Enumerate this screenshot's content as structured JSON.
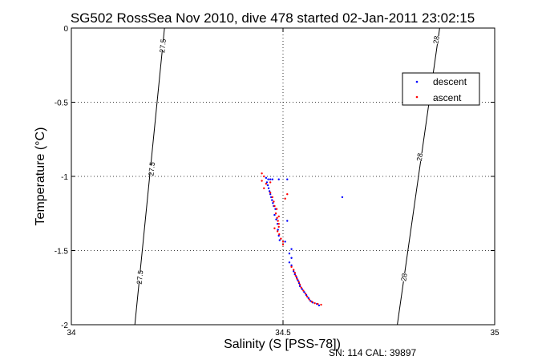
{
  "chart_data": {
    "type": "scatter",
    "title": "SG502 RossSea Nov 2010, dive 478 started 02-Jan-2011 23:02:15",
    "xlabel": "Salinity (S [PSS-78])",
    "ylabel": "Temperature (°C)",
    "xlim": [
      34,
      35
    ],
    "ylim": [
      -2,
      0
    ],
    "xticks": [
      "34",
      "34.5",
      "35"
    ],
    "yticks": [
      "0",
      "-0.5",
      "-1",
      "-1.5",
      "-2"
    ],
    "grid": true,
    "legend_position": "top-right",
    "footer": "SN: 114  CAL: 39897",
    "isopycnals": [
      {
        "label": "27.5",
        "points": [
          [
            34.22,
            0
          ],
          [
            34.15,
            -2
          ]
        ],
        "label_positions": [
          [
            34.216,
            -0.12
          ],
          [
            34.19,
            -0.95
          ],
          [
            34.162,
            -1.68
          ]
        ]
      },
      {
        "label": "28",
        "points": [
          [
            34.87,
            0
          ],
          [
            34.77,
            -2
          ]
        ],
        "label_positions": [
          [
            34.862,
            -0.08
          ],
          [
            34.823,
            -0.87
          ],
          [
            34.786,
            -1.68
          ]
        ]
      }
    ],
    "series": [
      {
        "name": "descent",
        "color": "#0000ff",
        "points": [
          [
            34.46,
            -1.01
          ],
          [
            34.465,
            -1.02
          ],
          [
            34.47,
            -1.02
          ],
          [
            34.475,
            -1.02
          ],
          [
            34.49,
            -1.02
          ],
          [
            34.51,
            -1.02
          ],
          [
            34.462,
            -1.04
          ],
          [
            34.464,
            -1.06
          ],
          [
            34.466,
            -1.08
          ],
          [
            34.468,
            -1.1
          ],
          [
            34.47,
            -1.12
          ],
          [
            34.472,
            -1.14
          ],
          [
            34.474,
            -1.16
          ],
          [
            34.476,
            -1.18
          ],
          [
            34.478,
            -1.2
          ],
          [
            34.482,
            -1.22
          ],
          [
            34.48,
            -1.26
          ],
          [
            34.484,
            -1.29
          ],
          [
            34.487,
            -1.32
          ],
          [
            34.488,
            -1.36
          ],
          [
            34.49,
            -1.4
          ],
          [
            34.492,
            -1.43
          ],
          [
            34.64,
            -1.14
          ],
          [
            34.51,
            -1.3
          ],
          [
            34.505,
            -1.44
          ],
          [
            34.52,
            -1.49
          ],
          [
            34.515,
            -1.52
          ],
          [
            34.52,
            -1.55
          ],
          [
            34.515,
            -1.58
          ],
          [
            34.52,
            -1.6
          ],
          [
            34.525,
            -1.64
          ],
          [
            34.528,
            -1.66
          ],
          [
            34.532,
            -1.68
          ],
          [
            34.535,
            -1.7
          ],
          [
            34.538,
            -1.72
          ],
          [
            34.54,
            -1.74
          ],
          [
            34.545,
            -1.76
          ],
          [
            34.55,
            -1.78
          ],
          [
            34.555,
            -1.8
          ],
          [
            34.56,
            -1.82
          ],
          [
            34.565,
            -1.84
          ],
          [
            34.57,
            -1.85
          ],
          [
            34.58,
            -1.86
          ],
          [
            34.585,
            -1.87
          ]
        ]
      },
      {
        "name": "ascent",
        "color": "#ff0000",
        "points": [
          [
            34.45,
            -0.98
          ],
          [
            34.455,
            -1.0
          ],
          [
            34.45,
            -1.03
          ],
          [
            34.46,
            -1.05
          ],
          [
            34.455,
            -1.08
          ],
          [
            34.47,
            -1.04
          ],
          [
            34.47,
            -1.11
          ],
          [
            34.475,
            -1.14
          ],
          [
            34.478,
            -1.17
          ],
          [
            34.48,
            -1.2
          ],
          [
            34.485,
            -1.22
          ],
          [
            34.483,
            -1.25
          ],
          [
            34.486,
            -1.28
          ],
          [
            34.488,
            -1.3
          ],
          [
            34.49,
            -1.32
          ],
          [
            34.49,
            -1.34
          ],
          [
            34.487,
            -1.37
          ],
          [
            34.491,
            -1.39
          ],
          [
            34.495,
            -1.42
          ],
          [
            34.5,
            -1.44
          ],
          [
            34.5,
            -1.46
          ],
          [
            34.49,
            -1.27
          ],
          [
            34.51,
            -1.12
          ],
          [
            34.505,
            -1.15
          ],
          [
            34.48,
            -1.35
          ],
          [
            34.52,
            -1.61
          ],
          [
            34.525,
            -1.63
          ],
          [
            34.528,
            -1.65
          ],
          [
            34.53,
            -1.67
          ],
          [
            34.533,
            -1.69
          ],
          [
            34.537,
            -1.71
          ],
          [
            34.54,
            -1.73
          ],
          [
            34.543,
            -1.75
          ],
          [
            34.548,
            -1.77
          ],
          [
            34.553,
            -1.79
          ],
          [
            34.557,
            -1.81
          ],
          [
            34.562,
            -1.83
          ],
          [
            34.568,
            -1.845
          ],
          [
            34.575,
            -1.855
          ],
          [
            34.582,
            -1.86
          ],
          [
            34.59,
            -1.865
          ]
        ]
      }
    ]
  }
}
